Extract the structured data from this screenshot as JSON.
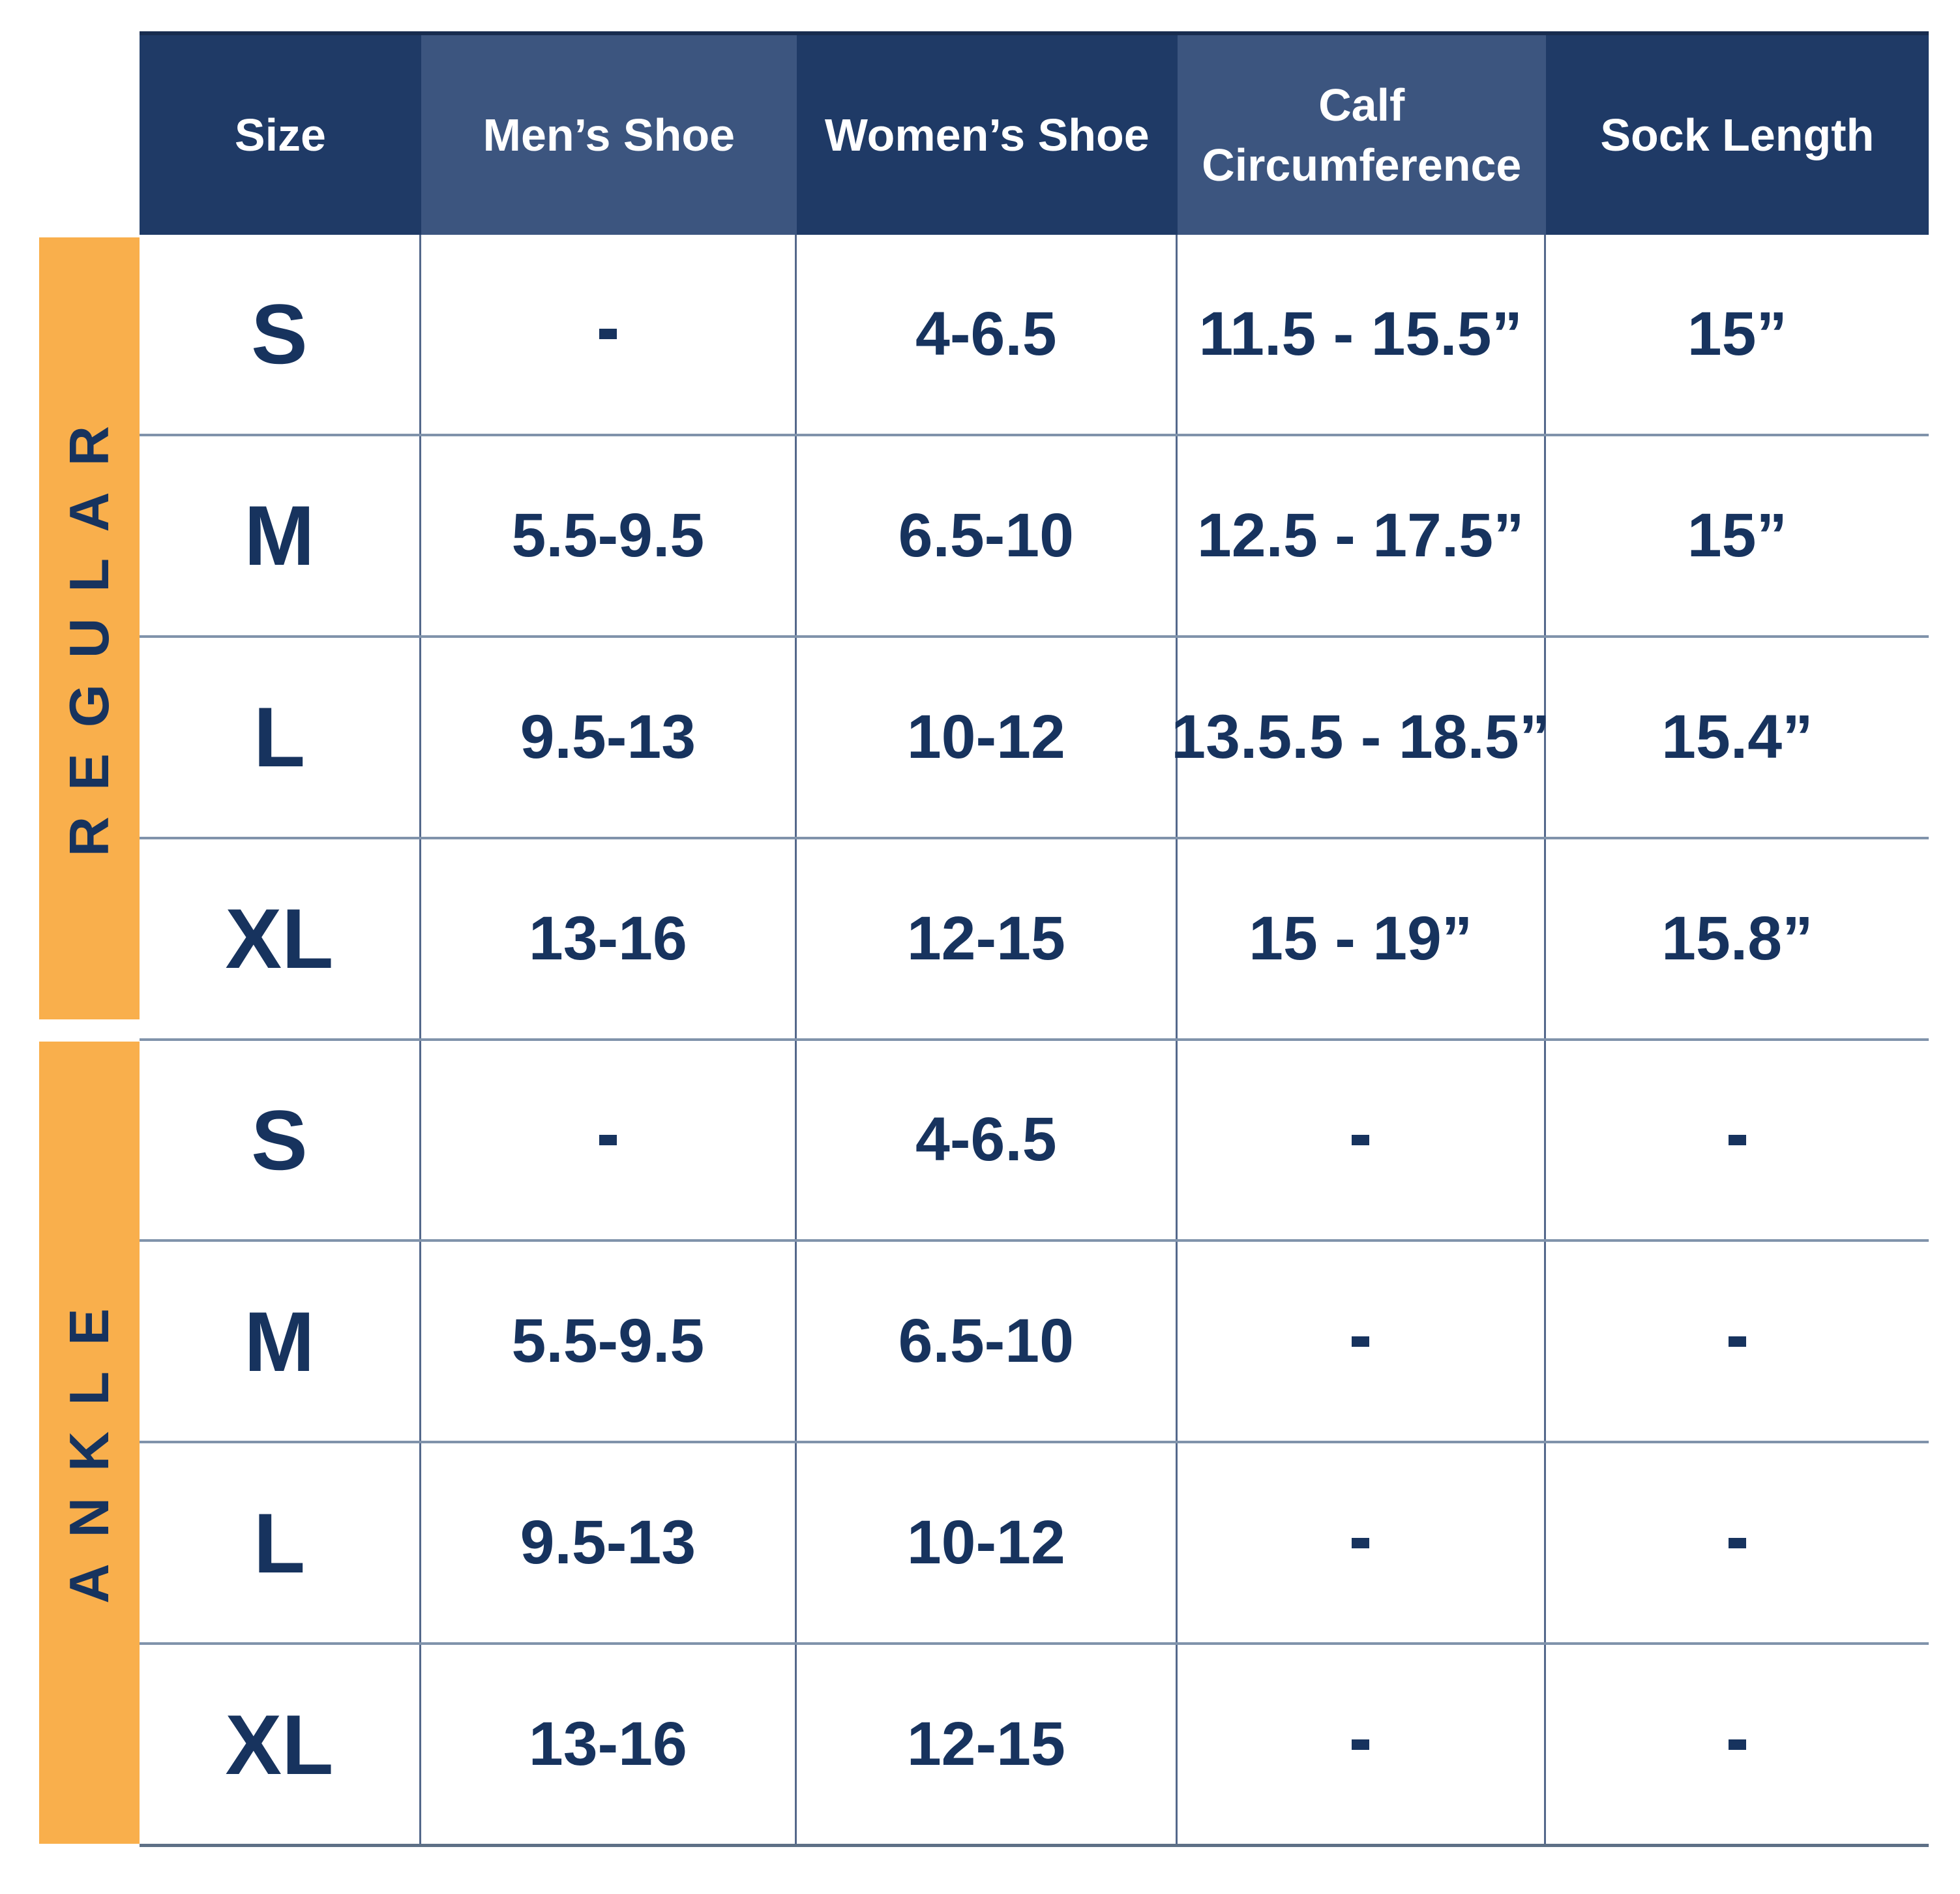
{
  "colors": {
    "header_dark": "#1F3A66",
    "header_light": "#3C557F",
    "text_navy": "#17335E",
    "band_orange": "#F9AF4C",
    "line_horizontal": "#8093AB",
    "line_vertical": "#54688B",
    "line_bottom": "#5E7086",
    "header_text": "#FFFFFF",
    "background": "#FFFFFF"
  },
  "chart_data": {
    "type": "table",
    "columns": [
      "Size",
      "Men’s Shoe",
      "Women’s Shoe",
      "Calf Circumference",
      "Sock Length"
    ],
    "sections": [
      {
        "label": "REGULAR",
        "rows": [
          [
            "S",
            "-",
            "4-6.5",
            "11.5 - 15.5”",
            "15”"
          ],
          [
            "M",
            "5.5-9.5",
            "6.5-10",
            "12.5 - 17.5”",
            "15”"
          ],
          [
            "L",
            "9.5-13",
            "10-12",
            "13.5.5 - 18.5”",
            "15.4”"
          ],
          [
            "XL",
            "13-16",
            "12-15",
            "15 - 19”",
            "15.8”"
          ]
        ]
      },
      {
        "label": "ANKLE",
        "rows": [
          [
            "S",
            "-",
            "4-6.5",
            "-",
            "-"
          ],
          [
            "M",
            "5.5-9.5",
            "6.5-10",
            "-",
            "-"
          ],
          [
            "L",
            "9.5-13",
            "10-12",
            "-",
            "-"
          ],
          [
            "XL",
            "13-16",
            "12-15",
            "-",
            "-"
          ]
        ]
      }
    ]
  }
}
